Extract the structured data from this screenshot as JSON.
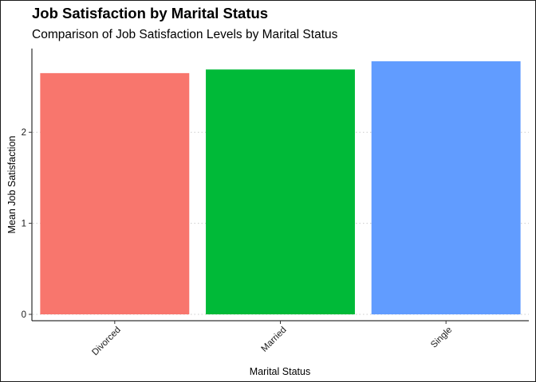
{
  "chart_data": {
    "type": "bar",
    "title": "Job Satisfaction by Marital Status",
    "subtitle": "Comparison of Job Satisfaction Levels by Marital Status",
    "xlabel": "Marital Status",
    "ylabel": "Mean Job Satisfaction",
    "categories": [
      "Divorced",
      "Married",
      "Single"
    ],
    "values": [
      2.65,
      2.69,
      2.78
    ],
    "colors": [
      "#F8766D",
      "#00BA38",
      "#619CFF"
    ],
    "yticks": [
      0,
      1,
      2
    ],
    "ytick_labels": [
      "0",
      "1",
      "2"
    ],
    "ylim": [
      -0.07,
      2.92
    ],
    "grid": "horizontal dotted",
    "legend": "none"
  }
}
